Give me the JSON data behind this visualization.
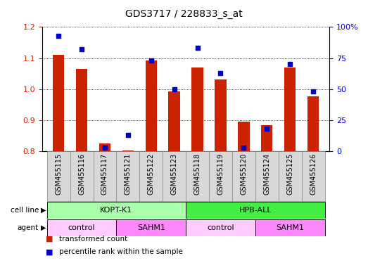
{
  "title": "GDS3717 / 228833_s_at",
  "samples": [
    "GSM455115",
    "GSM455116",
    "GSM455117",
    "GSM455121",
    "GSM455122",
    "GSM455123",
    "GSM455118",
    "GSM455119",
    "GSM455120",
    "GSM455124",
    "GSM455125",
    "GSM455126"
  ],
  "red_values": [
    1.11,
    1.065,
    0.825,
    0.803,
    1.093,
    0.993,
    1.07,
    1.03,
    0.895,
    0.885,
    1.07,
    0.977
  ],
  "blue_values": [
    93,
    82,
    3,
    13,
    73,
    50,
    83,
    63,
    3,
    18,
    70,
    48
  ],
  "ylim_left": [
    0.8,
    1.2
  ],
  "ylim_right": [
    0,
    100
  ],
  "yticks_left": [
    0.8,
    0.9,
    1.0,
    1.1,
    1.2
  ],
  "yticks_right": [
    0,
    25,
    50,
    75,
    100
  ],
  "cell_line_groups": [
    {
      "label": "KOPT-K1",
      "start": 0,
      "end": 6,
      "color": "#aaffaa"
    },
    {
      "label": "HPB-ALL",
      "start": 6,
      "end": 12,
      "color": "#44ee44"
    }
  ],
  "agent_groups": [
    {
      "label": "control",
      "start": 0,
      "end": 3,
      "color": "#ffccff"
    },
    {
      "label": "SAHM1",
      "start": 3,
      "end": 6,
      "color": "#ff88ff"
    },
    {
      "label": "control",
      "start": 6,
      "end": 9,
      "color": "#ffccff"
    },
    {
      "label": "SAHM1",
      "start": 9,
      "end": 12,
      "color": "#ff88ff"
    }
  ],
  "bar_color": "#cc2200",
  "dot_color": "#0000cc",
  "bar_width": 0.5,
  "bg_color": "#ffffff",
  "tick_color_left": "#cc2200",
  "tick_color_right": "#0000cc",
  "legend": [
    {
      "label": "transformed count",
      "color": "#cc2200"
    },
    {
      "label": "percentile rank within the sample",
      "color": "#0000cc"
    }
  ]
}
